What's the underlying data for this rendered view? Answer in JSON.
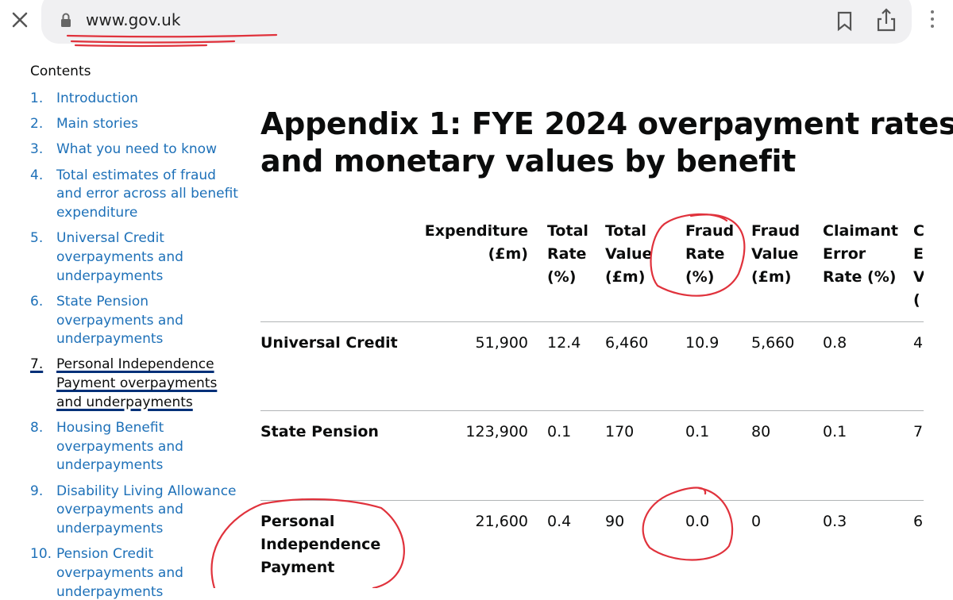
{
  "browser": {
    "url": "www.gov.uk"
  },
  "contents": {
    "title": "Contents",
    "items": [
      {
        "number": "1.",
        "label": [
          "Introduction"
        ]
      },
      {
        "number": "2.",
        "label": [
          "Main stories"
        ]
      },
      {
        "number": "3.",
        "label": [
          "What you need to know"
        ]
      },
      {
        "number": "4.",
        "label": [
          "Total estimates of fraud",
          "and error across all benefit",
          "expenditure"
        ]
      },
      {
        "number": "5.",
        "label": [
          "Universal Credit",
          "overpayments and",
          "underpayments"
        ]
      },
      {
        "number": "6.",
        "label": [
          "State Pension",
          "overpayments and",
          "underpayments"
        ]
      },
      {
        "number": "7.",
        "label": [
          "Personal Independence",
          "Payment overpayments",
          "and underpayments"
        ],
        "active": true
      },
      {
        "number": "8.",
        "label": [
          "Housing Benefit",
          "overpayments and",
          "underpayments"
        ]
      },
      {
        "number": "9.",
        "label": [
          "Disability Living Allowance",
          "overpayments and",
          "underpayments"
        ]
      },
      {
        "number": "10.",
        "label": [
          "Pension Credit",
          "overpayments and",
          "underpayments"
        ]
      }
    ]
  },
  "heading": [
    "Appendix 1: FYE 2024 overpayment rates",
    "and monetary values by benefit"
  ],
  "table": {
    "headers": [
      [
        "Expenditure",
        "(£m)"
      ],
      [
        "Total",
        "Rate",
        "(%)"
      ],
      [
        "Total",
        "Value",
        "(£m)"
      ],
      [
        "Fraud",
        "Rate",
        "(%)"
      ],
      [
        "Fraud",
        "Value",
        "(£m)"
      ],
      [
        "Claimant",
        "Error",
        "Rate (%)"
      ],
      [
        "C",
        "E",
        "V",
        "("
      ]
    ],
    "rows": [
      {
        "name": [
          "Universal Credit"
        ],
        "values": [
          "51,900",
          "12.4",
          "6,460",
          "10.9",
          "5,660",
          "0.8",
          "4"
        ]
      },
      {
        "name": [
          "State Pension"
        ],
        "values": [
          "123,900",
          "0.1",
          "170",
          "0.1",
          "80",
          "0.1",
          "7"
        ]
      },
      {
        "name": [
          "Personal",
          "Independence",
          "Payment"
        ],
        "values": [
          "21,600",
          "0.4",
          "90",
          "0.0",
          "0",
          "0.3",
          "6"
        ]
      }
    ]
  }
}
